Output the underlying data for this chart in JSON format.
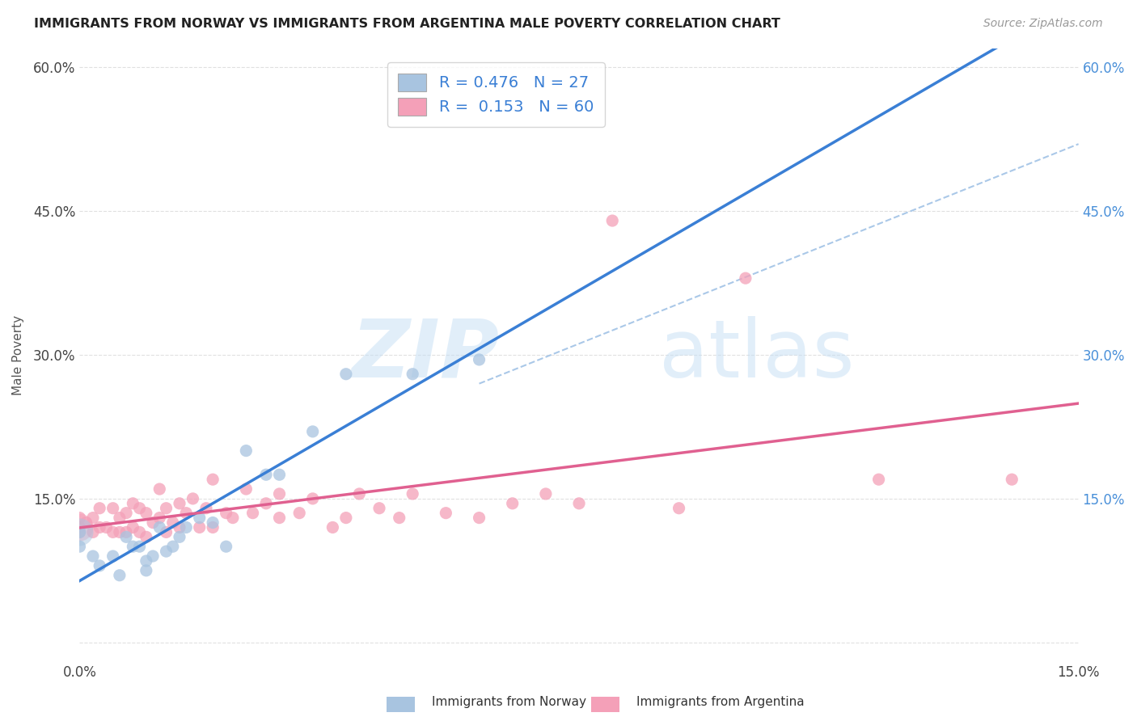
{
  "title": "IMMIGRANTS FROM NORWAY VS IMMIGRANTS FROM ARGENTINA MALE POVERTY CORRELATION CHART",
  "source": "Source: ZipAtlas.com",
  "ylabel": "Male Poverty",
  "xlim": [
    0.0,
    0.15
  ],
  "ylim": [
    -0.02,
    0.62
  ],
  "x_ticks": [
    0.0,
    0.15
  ],
  "x_tick_labels": [
    "0.0%",
    "15.0%"
  ],
  "y_ticks": [
    0.0,
    0.15,
    0.3,
    0.45,
    0.6
  ],
  "y_tick_labels": [
    "",
    "15.0%",
    "30.0%",
    "45.0%",
    "60.0%"
  ],
  "right_y_ticks": [
    0.15,
    0.3,
    0.45,
    0.6
  ],
  "right_y_tick_labels": [
    "15.0%",
    "30.0%",
    "45.0%",
    "60.0%"
  ],
  "norway_color": "#a8c4e0",
  "argentina_color": "#f4a0b8",
  "norway_line_color": "#3a7fd5",
  "argentina_line_color": "#e06090",
  "dashed_line_color": "#aac8e8",
  "legend_norway_R": "0.476",
  "legend_norway_N": "27",
  "legend_argentina_R": "0.153",
  "legend_argentina_N": "60",
  "norway_scatter_x": [
    0.0,
    0.0,
    0.002,
    0.003,
    0.005,
    0.006,
    0.007,
    0.008,
    0.009,
    0.01,
    0.01,
    0.011,
    0.012,
    0.013,
    0.014,
    0.015,
    0.016,
    0.018,
    0.02,
    0.022,
    0.025,
    0.028,
    0.03,
    0.035,
    0.04,
    0.05,
    0.06
  ],
  "norway_scatter_y": [
    0.115,
    0.1,
    0.09,
    0.08,
    0.09,
    0.07,
    0.11,
    0.1,
    0.1,
    0.075,
    0.085,
    0.09,
    0.12,
    0.095,
    0.1,
    0.11,
    0.12,
    0.13,
    0.125,
    0.1,
    0.2,
    0.175,
    0.175,
    0.22,
    0.28,
    0.28,
    0.295
  ],
  "argentina_scatter_x": [
    0.0,
    0.0,
    0.0,
    0.001,
    0.002,
    0.002,
    0.003,
    0.003,
    0.004,
    0.005,
    0.005,
    0.006,
    0.006,
    0.007,
    0.007,
    0.008,
    0.008,
    0.009,
    0.009,
    0.01,
    0.01,
    0.011,
    0.012,
    0.012,
    0.013,
    0.013,
    0.014,
    0.015,
    0.015,
    0.016,
    0.017,
    0.018,
    0.019,
    0.02,
    0.02,
    0.022,
    0.023,
    0.025,
    0.026,
    0.028,
    0.03,
    0.03,
    0.033,
    0.035,
    0.038,
    0.04,
    0.042,
    0.045,
    0.048,
    0.05,
    0.055,
    0.06,
    0.065,
    0.07,
    0.075,
    0.08,
    0.09,
    0.1,
    0.12,
    0.14
  ],
  "argentina_scatter_y": [
    0.12,
    0.115,
    0.13,
    0.125,
    0.115,
    0.13,
    0.12,
    0.14,
    0.12,
    0.115,
    0.14,
    0.115,
    0.13,
    0.115,
    0.135,
    0.12,
    0.145,
    0.115,
    0.14,
    0.11,
    0.135,
    0.125,
    0.13,
    0.16,
    0.115,
    0.14,
    0.125,
    0.12,
    0.145,
    0.135,
    0.15,
    0.12,
    0.14,
    0.12,
    0.17,
    0.135,
    0.13,
    0.16,
    0.135,
    0.145,
    0.13,
    0.155,
    0.135,
    0.15,
    0.12,
    0.13,
    0.155,
    0.14,
    0.13,
    0.155,
    0.135,
    0.13,
    0.145,
    0.155,
    0.145,
    0.44,
    0.14,
    0.38,
    0.17,
    0.17
  ],
  "background_color": "#ffffff",
  "grid_color": "#dddddd",
  "figsize": [
    14.06,
    8.92
  ],
  "dpi": 100
}
